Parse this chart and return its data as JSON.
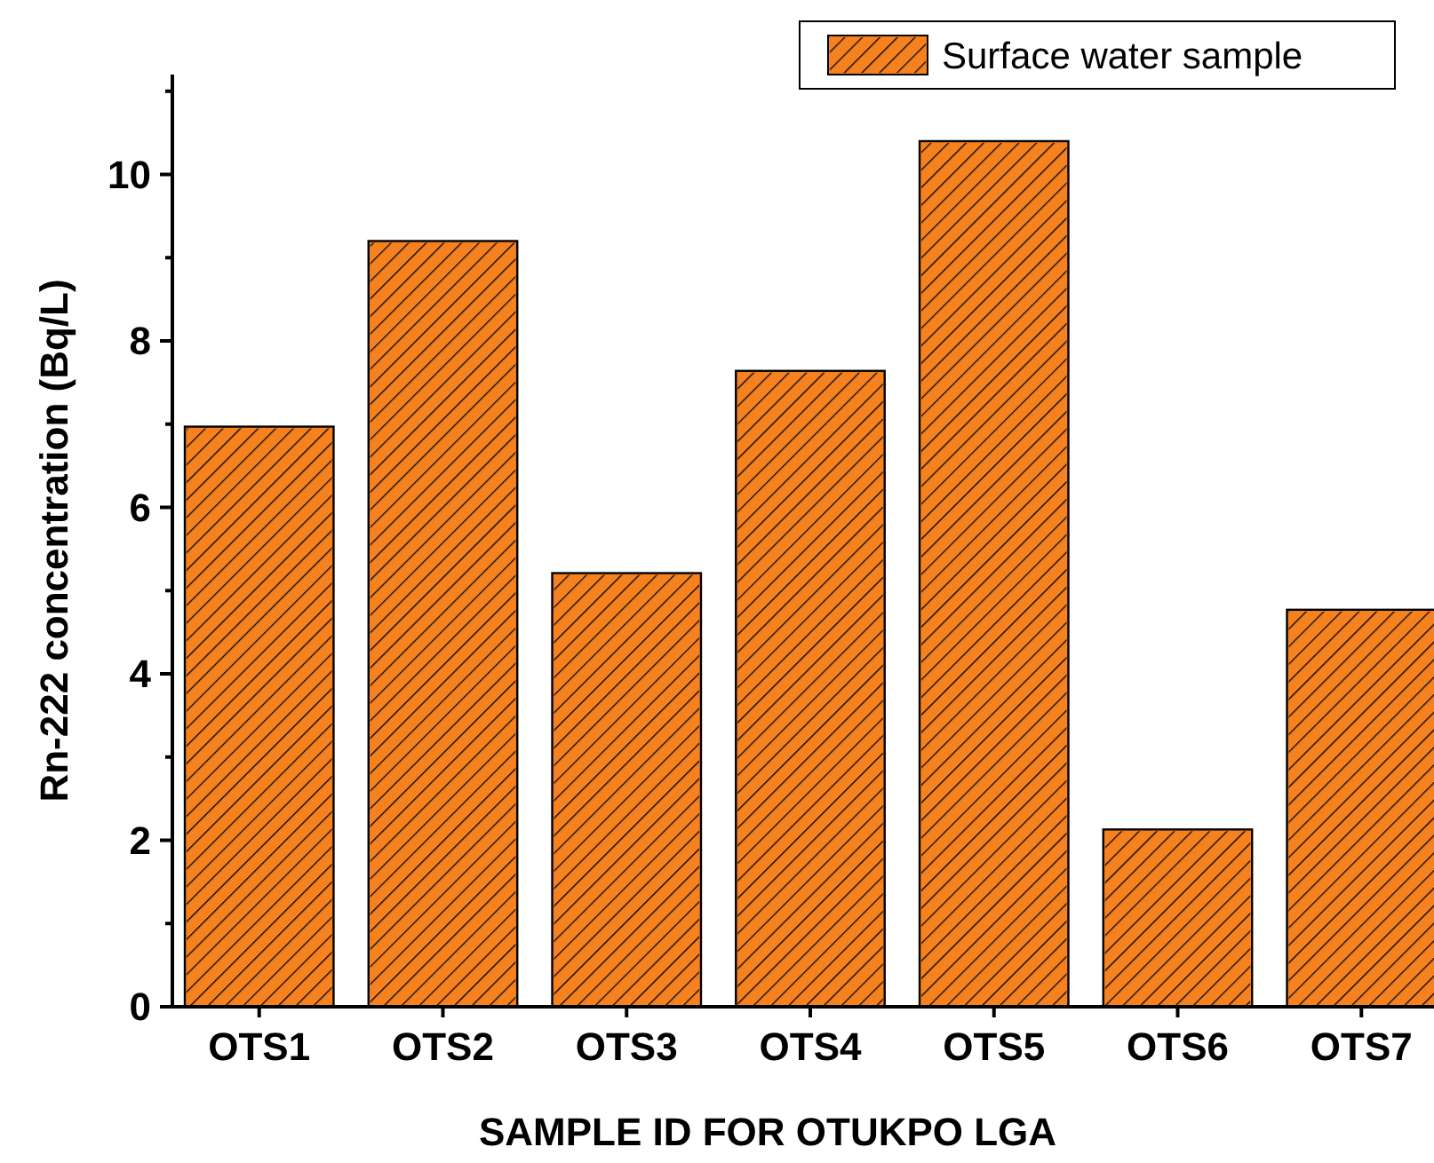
{
  "chart_data": {
    "type": "bar",
    "xlabel": "SAMPLE ID FOR OTUKPO LGA",
    "ylabel": "Rn-222 concentration (Bq/L)",
    "categories": [
      "OTS1",
      "OTS2",
      "OTS3",
      "OTS4",
      "OTS5",
      "OTS6",
      "OTS7"
    ],
    "series": [
      {
        "name": "Surface water sample",
        "color": "#f5821f",
        "values": [
          6.97,
          9.2,
          5.21,
          7.64,
          10.4,
          2.13,
          4.77
        ]
      }
    ],
    "ylim": [
      0,
      11.2
    ],
    "yticks": [
      0,
      {
        "value": 1,
        "label": null
      },
      2,
      {
        "value": 3,
        "label": null
      },
      4,
      {
        "value": 5,
        "label": null
      },
      6,
      {
        "value": 7,
        "label": null
      },
      8,
      {
        "value": 9,
        "label": null
      },
      10,
      {
        "value": 11,
        "label": null
      }
    ],
    "legend": "top right",
    "grid": false
  }
}
